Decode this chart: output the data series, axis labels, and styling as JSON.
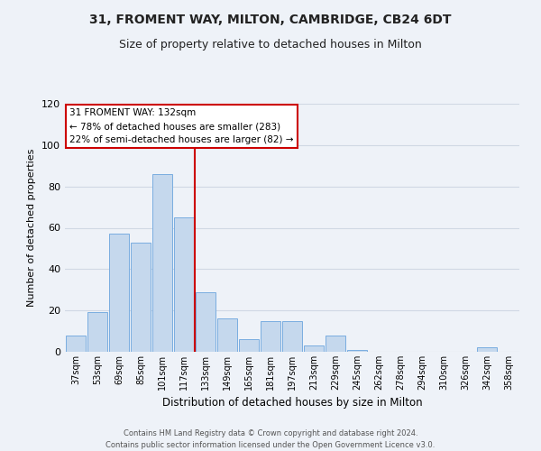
{
  "title": "31, FROMENT WAY, MILTON, CAMBRIDGE, CB24 6DT",
  "subtitle": "Size of property relative to detached houses in Milton",
  "xlabel": "Distribution of detached houses by size in Milton",
  "ylabel": "Number of detached properties",
  "bin_labels": [
    "37sqm",
    "53sqm",
    "69sqm",
    "85sqm",
    "101sqm",
    "117sqm",
    "133sqm",
    "149sqm",
    "165sqm",
    "181sqm",
    "197sqm",
    "213sqm",
    "229sqm",
    "245sqm",
    "262sqm",
    "278sqm",
    "294sqm",
    "310sqm",
    "326sqm",
    "342sqm",
    "358sqm"
  ],
  "bar_values": [
    8,
    19,
    57,
    53,
    86,
    65,
    29,
    16,
    6,
    15,
    15,
    3,
    8,
    1,
    0,
    0,
    0,
    0,
    0,
    2,
    0
  ],
  "bar_color": "#c5d8ed",
  "bar_edge_color": "#7aade0",
  "annotation_line1": "31 FROMENT WAY: 132sqm",
  "annotation_line2": "← 78% of detached houses are smaller (283)",
  "annotation_line3": "22% of semi-detached houses are larger (82) →",
  "annotation_box_facecolor": "#ffffff",
  "annotation_box_edgecolor": "#cc0000",
  "vline_color": "#cc0000",
  "vline_x_index": 6,
  "ylim": [
    0,
    120
  ],
  "yticks": [
    0,
    20,
    40,
    60,
    80,
    100,
    120
  ],
  "grid_color": "#d0d8e4",
  "background_color": "#eef2f8",
  "title_fontsize": 10,
  "subtitle_fontsize": 9,
  "footer_line1": "Contains HM Land Registry data © Crown copyright and database right 2024.",
  "footer_line2": "Contains public sector information licensed under the Open Government Licence v3.0."
}
